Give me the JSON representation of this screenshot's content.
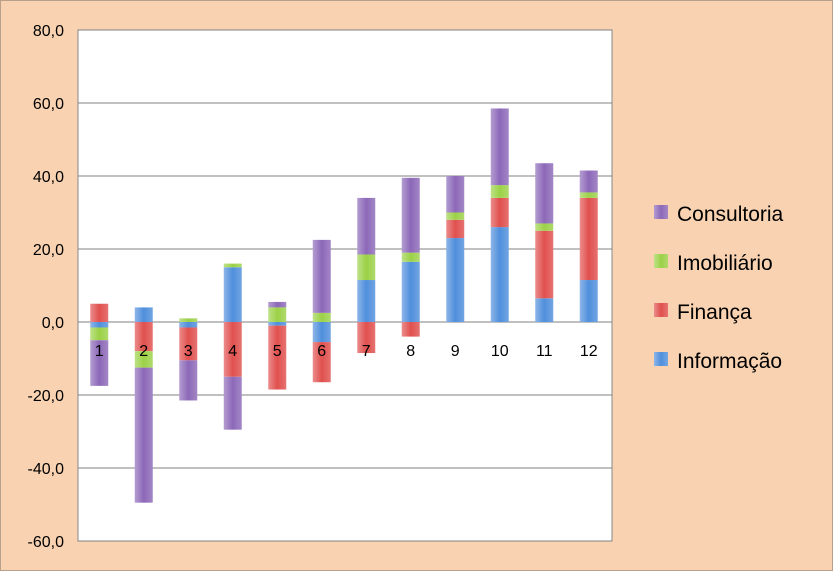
{
  "chart_data": {
    "type": "bar",
    "stacked": true,
    "categories": [
      "1",
      "2",
      "3",
      "4",
      "5",
      "6",
      "7",
      "8",
      "9",
      "10",
      "11",
      "12"
    ],
    "series": [
      {
        "name": "Informação",
        "color": "#4f8fdc",
        "values": [
          -1.5,
          4.0,
          -1.5,
          15.0,
          -1.0,
          -5.5,
          11.5,
          16.5,
          23.0,
          26.0,
          6.5,
          11.5
        ]
      },
      {
        "name": "Finança",
        "color": "#e0504e",
        "values": [
          5.0,
          -8.0,
          -9.0,
          -15.0,
          -17.5,
          -11.0,
          -8.5,
          -4.0,
          5.0,
          8.0,
          18.5,
          22.5
        ]
      },
      {
        "name": "Imobiliário",
        "color": "#9bd147",
        "values": [
          -3.5,
          -4.5,
          1.0,
          1.0,
          4.0,
          2.5,
          7.0,
          2.5,
          2.0,
          3.5,
          2.0,
          1.5
        ]
      },
      {
        "name": "Consultoria",
        "color": "#8c68b8",
        "values": [
          -12.5,
          -37.0,
          -11.0,
          -14.5,
          1.5,
          20.0,
          15.5,
          20.5,
          10.0,
          21.0,
          16.5,
          6.0
        ]
      }
    ],
    "ylim": [
      -60,
      80
    ],
    "yticks": [
      "80,0",
      "60,0",
      "40,0",
      "20,0",
      "0,0",
      "-20,0",
      "-40,0",
      "-60,0"
    ],
    "ytick_values": [
      80,
      60,
      40,
      20,
      0,
      -20,
      -40,
      -60
    ],
    "grid": true,
    "legend_position": "right",
    "legend_order": [
      "Consultoria",
      "Imobiliário",
      "Finança",
      "Informação"
    ],
    "title": "",
    "xlabel": "",
    "ylabel": ""
  },
  "colors": {
    "page_background": "#f9d3b1",
    "plot_background": "#ffffff"
  }
}
